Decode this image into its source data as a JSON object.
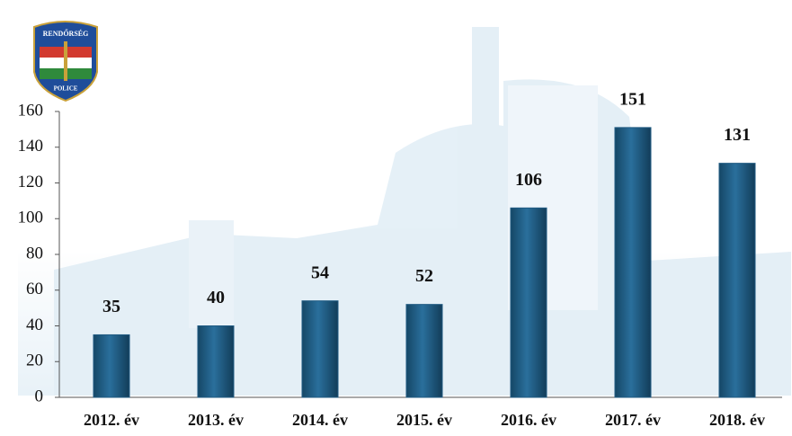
{
  "logo": {
    "top_text": "RENDŐRSÉG",
    "bottom_text": "POLICE"
  },
  "chart_data": {
    "type": "bar",
    "categories": [
      "2012. év",
      "2013. év",
      "2014. év",
      "2015. év",
      "2016. év",
      "2017. év",
      "2018. év"
    ],
    "values": [
      35,
      40,
      54,
      52,
      106,
      151,
      131
    ],
    "color": "#1f5a82",
    "ylim": [
      0,
      160
    ],
    "yticks": [
      0,
      20,
      40,
      60,
      80,
      100,
      120,
      140,
      160
    ],
    "grid": false
  }
}
